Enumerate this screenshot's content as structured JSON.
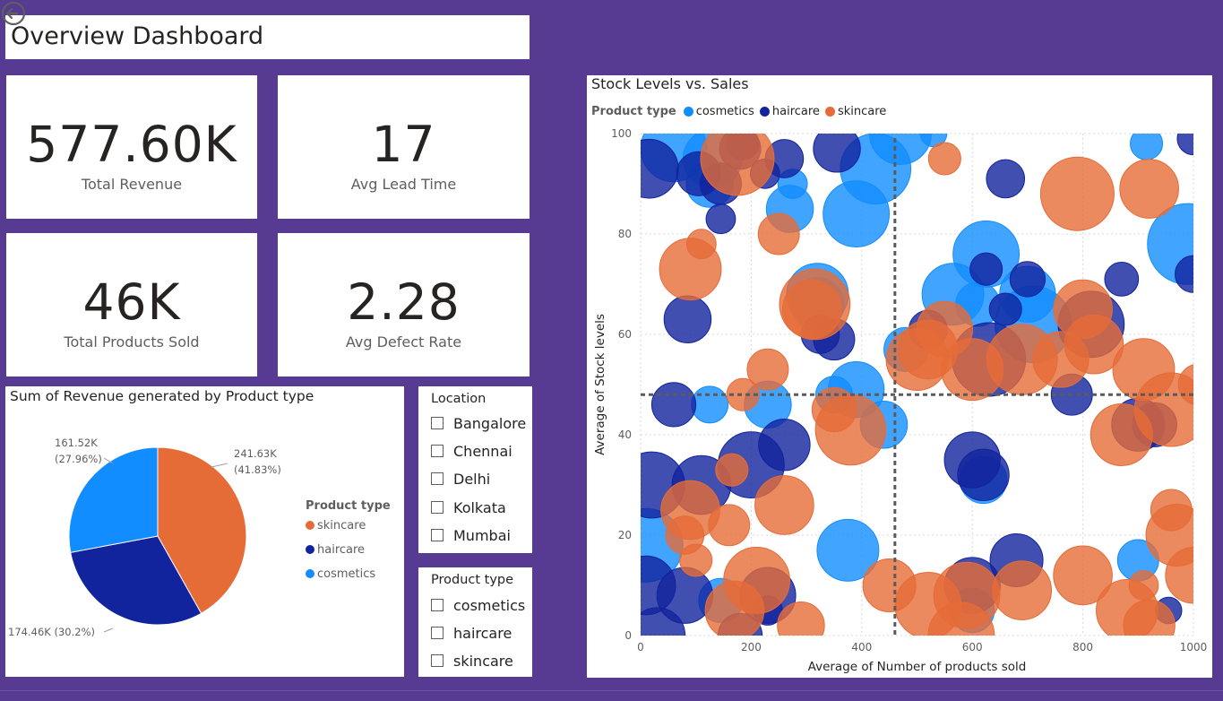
{
  "dashboard": {
    "title": "Overview Dashboard"
  },
  "kpis": [
    {
      "value": "577.60K",
      "label": "Total Revenue"
    },
    {
      "value": "17",
      "label": "Avg Lead Time"
    },
    {
      "value": "46K",
      "label": "Total Products Sold"
    },
    {
      "value": "2.28",
      "label": "Avg Defect Rate"
    }
  ],
  "colors": {
    "background": "#573b93",
    "skincare": "#e66c37",
    "haircare": "#12239e",
    "cosmetics": "#118dff"
  },
  "pie_chart": {
    "title": "Sum of Revenue generated by Product type",
    "legend_title": "Product type",
    "legend": [
      "skincare",
      "haircare",
      "cosmetics"
    ],
    "chart_data": {
      "type": "pie",
      "title": "Sum of Revenue generated by Product type",
      "slices": [
        {
          "name": "skincare",
          "value": 241.63,
          "label_value": "241.63K",
          "label_pct": "(41.83%)",
          "color": "#e66c37"
        },
        {
          "name": "haircare",
          "value": 174.46,
          "label_value": "174.46K (30.2%)",
          "label_pct": "",
          "color": "#12239e"
        },
        {
          "name": "cosmetics",
          "value": 161.52,
          "label_value": "161.52K",
          "label_pct": "(27.96%)",
          "color": "#118dff"
        }
      ],
      "legend_placement": "right"
    }
  },
  "slicers": {
    "location": {
      "title": "Location",
      "options": [
        "Bangalore",
        "Chennai",
        "Delhi",
        "Kolkata",
        "Mumbai"
      ]
    },
    "product_type": {
      "title": "Product type",
      "options": [
        "cosmetics",
        "haircare",
        "skincare"
      ]
    }
  },
  "scatter": {
    "title": "Stock Levels vs. Sales",
    "legend_title": "Product type",
    "legend": [
      "cosmetics",
      "haircare",
      "skincare"
    ],
    "chart_data": {
      "type": "scatter",
      "title": "Stock Levels vs. Sales",
      "xlabel": "Average of Number of products sold",
      "ylabel": "Average of Stock levels",
      "xlim": [
        0,
        1000
      ],
      "ylim": [
        0,
        100
      ],
      "xticks": [
        0,
        200,
        400,
        600,
        800,
        1000
      ],
      "yticks": [
        0,
        20,
        40,
        60,
        80,
        100
      ],
      "grid": true,
      "legend_placement": "top-left",
      "average_lines": {
        "x": 460,
        "y": 48
      },
      "series": [
        {
          "name": "cosmetics",
          "color": "#118dff",
          "points": [
            [
              60,
              97,
              45
            ],
            [
              130,
              95,
              40
            ],
            [
              125,
              90,
              32
            ],
            [
              275,
              90,
              20
            ],
            [
              270,
              85,
              32
            ],
            [
              390,
              84,
              45
            ],
            [
              425,
              93,
              48
            ],
            [
              470,
              100,
              42
            ],
            [
              530,
              100,
              18
            ],
            [
              915,
              98,
              22
            ],
            [
              990,
              78,
              55
            ],
            [
              625,
              76,
              45
            ],
            [
              565,
              68,
              42
            ],
            [
              700,
              68,
              38
            ],
            [
              710,
              62,
              52
            ],
            [
              610,
              66,
              30
            ],
            [
              320,
              68,
              42
            ],
            [
              320,
              66,
              36
            ],
            [
              480,
              57,
              30
            ],
            [
              390,
              49,
              38
            ],
            [
              350,
              48,
              25
            ],
            [
              440,
              42,
              32
            ],
            [
              230,
              46,
              32
            ],
            [
              125,
              46,
              25
            ],
            [
              620,
              31,
              32
            ],
            [
              375,
              17,
              42
            ],
            [
              145,
              7,
              30
            ],
            [
              600,
              5,
              30
            ],
            [
              900,
              15,
              28
            ],
            [
              10,
              18,
              50
            ]
          ]
        },
        {
          "name": "haircare",
          "color": "#12239e",
          "points": [
            [
              15,
              93,
              40
            ],
            [
              105,
              92,
              30
            ],
            [
              145,
              90,
              28
            ],
            [
              180,
              97,
              28
            ],
            [
              185,
              98,
              22
            ],
            [
              355,
              97,
              32
            ],
            [
              225,
              92,
              20
            ],
            [
              260,
              95,
              26
            ],
            [
              145,
              83,
              20
            ],
            [
              85,
              63,
              32
            ],
            [
              325,
              60,
              26
            ],
            [
              350,
              59,
              28
            ],
            [
              625,
              73,
              22
            ],
            [
              700,
              71,
              24
            ],
            [
              660,
              65,
              22
            ],
            [
              815,
              62,
              45
            ],
            [
              1000,
              72,
              25
            ],
            [
              870,
              71,
              23
            ],
            [
              660,
              91,
              26
            ],
            [
              1000,
              99,
              22
            ],
            [
              520,
              61,
              26
            ],
            [
              630,
              55,
              50
            ],
            [
              780,
              48,
              28
            ],
            [
              60,
              46,
              30
            ],
            [
              260,
              38,
              35
            ],
            [
              200,
              34,
              45
            ],
            [
              110,
              30,
              40
            ],
            [
              20,
              30,
              45
            ],
            [
              600,
              35,
              38
            ],
            [
              620,
              32,
              35
            ],
            [
              900,
              42,
              36
            ],
            [
              930,
              42,
              30
            ],
            [
              680,
              15,
              36
            ],
            [
              600,
              10,
              38
            ],
            [
              10,
              10,
              40
            ],
            [
              80,
              8,
              38
            ],
            [
              230,
              8,
              38
            ],
            [
              180,
              0,
              30
            ],
            [
              30,
              0,
              38
            ],
            [
              955,
              5,
              18
            ],
            [
              230,
              5,
              20
            ]
          ]
        },
        {
          "name": "skincare",
          "color": "#e66c37",
          "points": [
            [
              175,
              95,
              50
            ],
            [
              250,
              80,
              28
            ],
            [
              90,
              73,
              42
            ],
            [
              110,
              78,
              20
            ],
            [
              310,
              65,
              40
            ],
            [
              315,
              66,
              48
            ],
            [
              520,
              57,
              40
            ],
            [
              550,
              61,
              38
            ],
            [
              600,
              53,
              42
            ],
            [
              500,
              55,
              42
            ],
            [
              690,
              55,
              48
            ],
            [
              760,
              55,
              38
            ],
            [
              800,
              65,
              40
            ],
            [
              820,
              58,
              40
            ],
            [
              910,
              53,
              42
            ],
            [
              960,
              45,
              50
            ],
            [
              1010,
              50,
              28
            ],
            [
              230,
              53,
              28
            ],
            [
              185,
              48,
              22
            ],
            [
              350,
              45,
              30
            ],
            [
              380,
              41,
              48
            ],
            [
              165,
              33,
              22
            ],
            [
              260,
              26,
              40
            ],
            [
              90,
              25,
              40
            ],
            [
              80,
              20,
              26
            ],
            [
              160,
              22,
              28
            ],
            [
              100,
              15,
              22
            ],
            [
              210,
              11,
              45
            ],
            [
              170,
              5,
              40
            ],
            [
              290,
              2,
              32
            ],
            [
              450,
              10,
              36
            ],
            [
              520,
              6,
              45
            ],
            [
              590,
              8,
              45
            ],
            [
              580,
              0,
              45
            ],
            [
              800,
              12,
              40
            ],
            [
              690,
              9,
              40
            ],
            [
              790,
              88,
              50
            ],
            [
              920,
              89,
              40
            ],
            [
              550,
              95,
              22
            ],
            [
              870,
              40,
              42
            ],
            [
              880,
              5,
              42
            ],
            [
              920,
              2,
              35
            ],
            [
              1000,
              12,
              38
            ],
            [
              960,
              25,
              28
            ],
            [
              970,
              20,
              42
            ],
            [
              910,
              10,
              20
            ]
          ]
        }
      ]
    }
  }
}
